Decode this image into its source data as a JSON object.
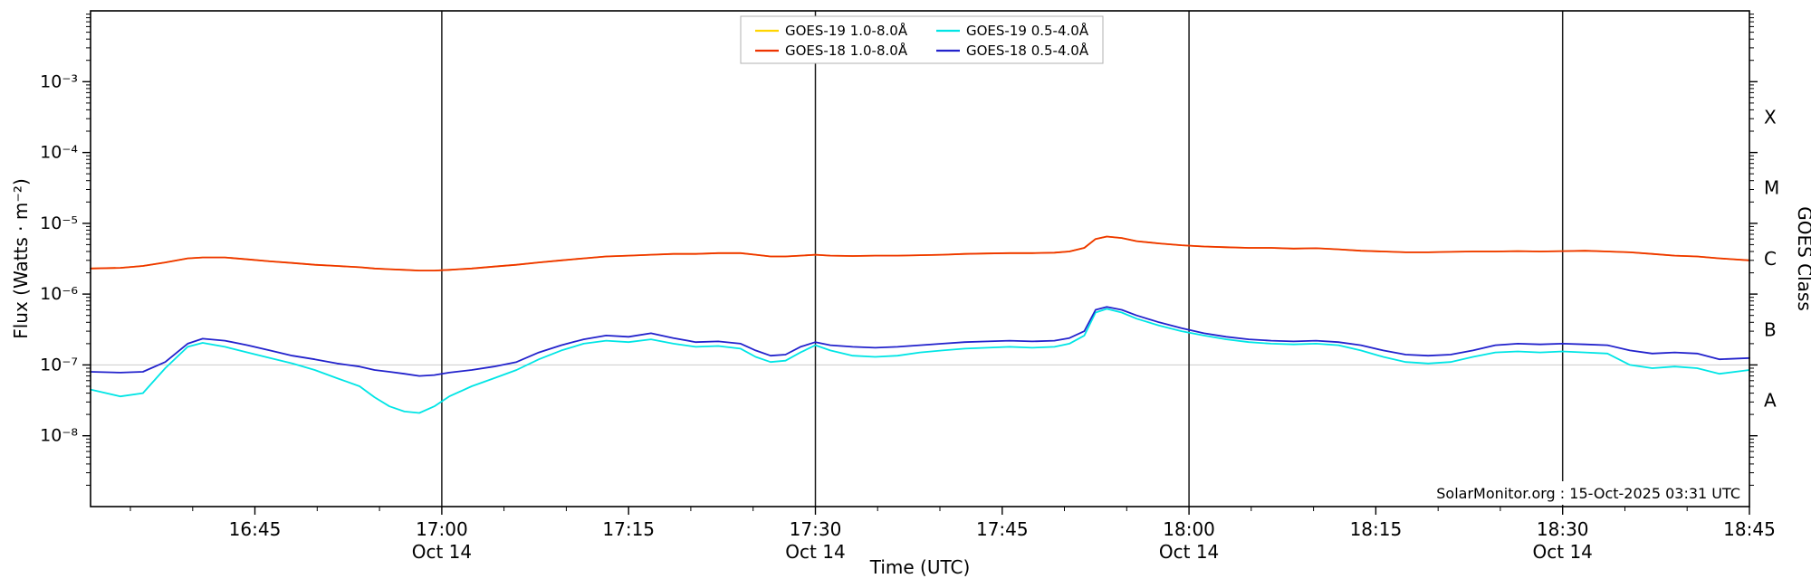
{
  "annotation": "SolarMonitor.org : 15-Oct-2025 03:31 UTC",
  "chart_data": {
    "type": "line",
    "title": "",
    "xlabel": "Time (UTC)",
    "ylabel": "Flux (Watts · m⁻²)",
    "ylabel_right": "GOES Class",
    "annotation": "SolarMonitor.org : 15-Oct-2025 03:31 UTC",
    "yscale": "log",
    "ylim": [
      1e-09,
      0.01
    ],
    "xlim": [
      16.53,
      18.75
    ],
    "x_unit": "decimal hours UTC, Oct 14",
    "grid": "single light line at 1e-7",
    "gridlines_y": [
      1e-07
    ],
    "vertical_lines": [
      17.0,
      17.5,
      18.0,
      18.5
    ],
    "legend_position": "top-center",
    "y_major_ticks": [
      {
        "v": 0.001,
        "label": "10⁻³"
      },
      {
        "v": 0.0001,
        "label": "10⁻⁴"
      },
      {
        "v": 1e-05,
        "label": "10⁻⁵"
      },
      {
        "v": 1e-06,
        "label": "10⁻⁶"
      },
      {
        "v": 1e-07,
        "label": "10⁻⁷"
      },
      {
        "v": 1e-08,
        "label": "10⁻⁸"
      }
    ],
    "x_major_ticks": [
      {
        "t": 16.75,
        "label": "16:45"
      },
      {
        "t": 17.0,
        "label": "17:00",
        "sub": "Oct 14"
      },
      {
        "t": 17.25,
        "label": "17:15"
      },
      {
        "t": 17.5,
        "label": "17:30",
        "sub": "Oct 14"
      },
      {
        "t": 17.75,
        "label": "17:45"
      },
      {
        "t": 18.0,
        "label": "18:00",
        "sub": "Oct 14"
      },
      {
        "t": 18.25,
        "label": "18:15"
      },
      {
        "t": 18.5,
        "label": "18:30",
        "sub": "Oct 14"
      },
      {
        "t": 18.75,
        "label": "18:45"
      }
    ],
    "goes_classes": [
      {
        "label": "X",
        "v": 0.000316
      },
      {
        "label": "M",
        "v": 3.16e-05
      },
      {
        "label": "C",
        "v": 3.16e-06
      },
      {
        "label": "B",
        "v": 3.16e-07
      },
      {
        "label": "A",
        "v": 3.16e-08
      }
    ],
    "x": [
      16.53,
      16.57,
      16.6,
      16.63,
      16.66,
      16.68,
      16.71,
      16.74,
      16.77,
      16.8,
      16.83,
      16.86,
      16.89,
      16.91,
      16.93,
      16.95,
      16.97,
      16.99,
      17.01,
      17.04,
      17.07,
      17.1,
      17.13,
      17.16,
      17.19,
      17.22,
      17.25,
      17.28,
      17.31,
      17.34,
      17.37,
      17.4,
      17.42,
      17.44,
      17.46,
      17.48,
      17.5,
      17.52,
      17.55,
      17.58,
      17.61,
      17.64,
      17.67,
      17.7,
      17.73,
      17.76,
      17.79,
      17.82,
      17.84,
      17.86,
      17.875,
      17.89,
      17.91,
      17.93,
      17.96,
      17.99,
      18.02,
      18.05,
      18.08,
      18.11,
      18.14,
      18.17,
      18.2,
      18.23,
      18.26,
      18.29,
      18.32,
      18.35,
      18.38,
      18.41,
      18.44,
      18.47,
      18.5,
      18.53,
      18.56,
      18.59,
      18.62,
      18.65,
      18.68,
      18.71,
      18.75
    ],
    "series": [
      {
        "id": "goes19-long",
        "name": "GOES-19 1.0-8.0Å",
        "color": "#ffd500",
        "values": [
          2.3e-06,
          2.35e-06,
          2.5e-06,
          2.8e-06,
          3.2e-06,
          3.3e-06,
          3.3e-06,
          3.1e-06,
          2.9e-06,
          2.75e-06,
          2.6e-06,
          2.5e-06,
          2.4e-06,
          2.3e-06,
          2.25e-06,
          2.2e-06,
          2.15e-06,
          2.15e-06,
          2.2e-06,
          2.3e-06,
          2.45e-06,
          2.6e-06,
          2.8e-06,
          3e-06,
          3.2e-06,
          3.4e-06,
          3.5e-06,
          3.6e-06,
          3.7e-06,
          3.7e-06,
          3.8e-06,
          3.8e-06,
          3.6e-06,
          3.4e-06,
          3.4e-06,
          3.5e-06,
          3.6e-06,
          3.5e-06,
          3.45e-06,
          3.5e-06,
          3.5e-06,
          3.55e-06,
          3.6e-06,
          3.7e-06,
          3.75e-06,
          3.8e-06,
          3.8e-06,
          3.85e-06,
          4e-06,
          4.5e-06,
          6e-06,
          6.5e-06,
          6.2e-06,
          5.6e-06,
          5.2e-06,
          4.9e-06,
          4.7e-06,
          4.6e-06,
          4.5e-06,
          4.5e-06,
          4.4e-06,
          4.45e-06,
          4.3e-06,
          4.1e-06,
          4e-06,
          3.9e-06,
          3.9e-06,
          3.95e-06,
          4e-06,
          4e-06,
          4.05e-06,
          4e-06,
          4.05e-06,
          4.1e-06,
          4e-06,
          3.9e-06,
          3.7e-06,
          3.5e-06,
          3.4e-06,
          3.2e-06,
          3e-06
        ]
      },
      {
        "id": "goes18-long",
        "name": "GOES-18 1.0-8.0Å",
        "color": "#ee3300",
        "values": [
          2.3e-06,
          2.35e-06,
          2.5e-06,
          2.8e-06,
          3.2e-06,
          3.3e-06,
          3.3e-06,
          3.1e-06,
          2.9e-06,
          2.75e-06,
          2.6e-06,
          2.5e-06,
          2.4e-06,
          2.3e-06,
          2.25e-06,
          2.2e-06,
          2.15e-06,
          2.15e-06,
          2.2e-06,
          2.3e-06,
          2.45e-06,
          2.6e-06,
          2.8e-06,
          3e-06,
          3.2e-06,
          3.4e-06,
          3.5e-06,
          3.6e-06,
          3.7e-06,
          3.7e-06,
          3.8e-06,
          3.8e-06,
          3.6e-06,
          3.4e-06,
          3.4e-06,
          3.5e-06,
          3.6e-06,
          3.5e-06,
          3.45e-06,
          3.5e-06,
          3.5e-06,
          3.55e-06,
          3.6e-06,
          3.7e-06,
          3.75e-06,
          3.8e-06,
          3.8e-06,
          3.85e-06,
          4e-06,
          4.5e-06,
          6e-06,
          6.5e-06,
          6.2e-06,
          5.6e-06,
          5.2e-06,
          4.9e-06,
          4.7e-06,
          4.6e-06,
          4.5e-06,
          4.5e-06,
          4.4e-06,
          4.45e-06,
          4.3e-06,
          4.1e-06,
          4e-06,
          3.9e-06,
          3.9e-06,
          3.95e-06,
          4e-06,
          4e-06,
          4.05e-06,
          4e-06,
          4.05e-06,
          4.1e-06,
          4e-06,
          3.9e-06,
          3.7e-06,
          3.5e-06,
          3.4e-06,
          3.2e-06,
          3e-06
        ]
      },
      {
        "id": "goes19-short",
        "name": "GOES-19 0.5-4.0Å",
        "color": "#00e5e5",
        "values": [
          4.5e-08,
          3.6e-08,
          4e-08,
          9e-08,
          1.8e-07,
          2.05e-07,
          1.8e-07,
          1.5e-07,
          1.25e-07,
          1.05e-07,
          8.5e-08,
          6.5e-08,
          5e-08,
          3.5e-08,
          2.6e-08,
          2.2e-08,
          2.1e-08,
          2.6e-08,
          3.6e-08,
          5e-08,
          6.5e-08,
          8.5e-08,
          1.2e-07,
          1.6e-07,
          2e-07,
          2.2e-07,
          2.1e-07,
          2.3e-07,
          2e-07,
          1.8e-07,
          1.85e-07,
          1.7e-07,
          1.3e-07,
          1.1e-07,
          1.15e-07,
          1.5e-07,
          1.9e-07,
          1.6e-07,
          1.35e-07,
          1.3e-07,
          1.35e-07,
          1.5e-07,
          1.6e-07,
          1.7e-07,
          1.75e-07,
          1.8e-07,
          1.75e-07,
          1.8e-07,
          2e-07,
          2.6e-07,
          5.5e-07,
          6.2e-07,
          5.5e-07,
          4.5e-07,
          3.6e-07,
          3e-07,
          2.6e-07,
          2.3e-07,
          2.1e-07,
          2e-07,
          1.95e-07,
          2e-07,
          1.9e-07,
          1.6e-07,
          1.3e-07,
          1.1e-07,
          1.05e-07,
          1.1e-07,
          1.3e-07,
          1.5e-07,
          1.55e-07,
          1.5e-07,
          1.55e-07,
          1.5e-07,
          1.45e-07,
          1e-07,
          9e-08,
          9.5e-08,
          9e-08,
          7.5e-08,
          8.5e-08
        ]
      },
      {
        "id": "goes18-short",
        "name": "GOES-18 0.5-4.0Å",
        "color": "#2222cc",
        "values": [
          8e-08,
          7.8e-08,
          8e-08,
          1.1e-07,
          2e-07,
          2.35e-07,
          2.2e-07,
          1.9e-07,
          1.6e-07,
          1.35e-07,
          1.2e-07,
          1.05e-07,
          9.5e-08,
          8.5e-08,
          8e-08,
          7.5e-08,
          7e-08,
          7.2e-08,
          7.8e-08,
          8.5e-08,
          9.5e-08,
          1.1e-07,
          1.5e-07,
          1.9e-07,
          2.3e-07,
          2.6e-07,
          2.5e-07,
          2.8e-07,
          2.4e-07,
          2.1e-07,
          2.15e-07,
          2e-07,
          1.6e-07,
          1.35e-07,
          1.4e-07,
          1.8e-07,
          2.1e-07,
          1.9e-07,
          1.8e-07,
          1.75e-07,
          1.8e-07,
          1.9e-07,
          2e-07,
          2.1e-07,
          2.15e-07,
          2.2e-07,
          2.15e-07,
          2.2e-07,
          2.4e-07,
          3e-07,
          6e-07,
          6.6e-07,
          6e-07,
          5e-07,
          4e-07,
          3.3e-07,
          2.8e-07,
          2.5e-07,
          2.3e-07,
          2.2e-07,
          2.15e-07,
          2.2e-07,
          2.1e-07,
          1.9e-07,
          1.6e-07,
          1.4e-07,
          1.35e-07,
          1.4e-07,
          1.6e-07,
          1.9e-07,
          2e-07,
          1.95e-07,
          2e-07,
          1.95e-07,
          1.9e-07,
          1.6e-07,
          1.45e-07,
          1.5e-07,
          1.45e-07,
          1.2e-07,
          1.25e-07
        ]
      }
    ]
  }
}
